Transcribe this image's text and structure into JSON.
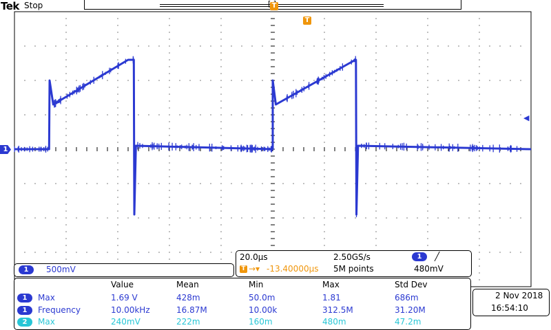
{
  "header": {
    "brand": "Tek",
    "status": "Stop",
    "record_bracket": "[ ]",
    "trigger_marker": "T"
  },
  "channel": {
    "ch1_marker": "1",
    "ch1_scale": "500mV"
  },
  "timebase": {
    "time_per_div": "20.0µs",
    "sample_rate": "2.50GS/s",
    "trigger_source": "1",
    "trigger_slope": "╱",
    "trigger_offset": "-13.40000µs",
    "record_length": "5M points",
    "trigger_level": "480mV"
  },
  "measurements": {
    "headers": [
      "Value",
      "Mean",
      "Min",
      "Max",
      "Std Dev"
    ],
    "rows": [
      {
        "channel": "1",
        "name": "Max",
        "value": "1.69 V",
        "mean": "428m",
        "min": "50.0m",
        "max": "1.81",
        "stddev": "686m"
      },
      {
        "channel": "1",
        "name": "Frequency",
        "value": "10.00kHz",
        "mean": "16.87M",
        "min": "10.00k",
        "max": "312.5M",
        "stddev": "31.20M"
      },
      {
        "channel": "2",
        "name": "Max",
        "value": "240mV",
        "mean": "222m",
        "min": "160m",
        "max": "480m",
        "stddev": "47.2m"
      }
    ]
  },
  "datetime": {
    "date": "2 Nov  2018",
    "time": "16:54:10"
  },
  "colors": {
    "ch1": "#2b39d1",
    "ch2": "#27c6d6",
    "trigger": "#f0960c"
  },
  "chart_data": {
    "type": "line",
    "title": "",
    "xlabel": "",
    "ylabel": "",
    "grid": true,
    "x_divisions": 10,
    "y_divisions": 8,
    "series": [
      {
        "name": "",
        "x_div": [
          0,
          0.67,
          0.68,
          0.75,
          2.2,
          2.31,
          2.32,
          2.35,
          5.0,
          5.0,
          5.06,
          6.6,
          6.61,
          6.62,
          6.65,
          10.0
        ],
        "y_div": [
          0,
          0,
          2.0,
          1.3,
          2.6,
          2.6,
          -1.9,
          0.1,
          0,
          2.0,
          1.3,
          2.6,
          2.6,
          -1.9,
          0.1,
          0
        ]
      }
    ]
  }
}
